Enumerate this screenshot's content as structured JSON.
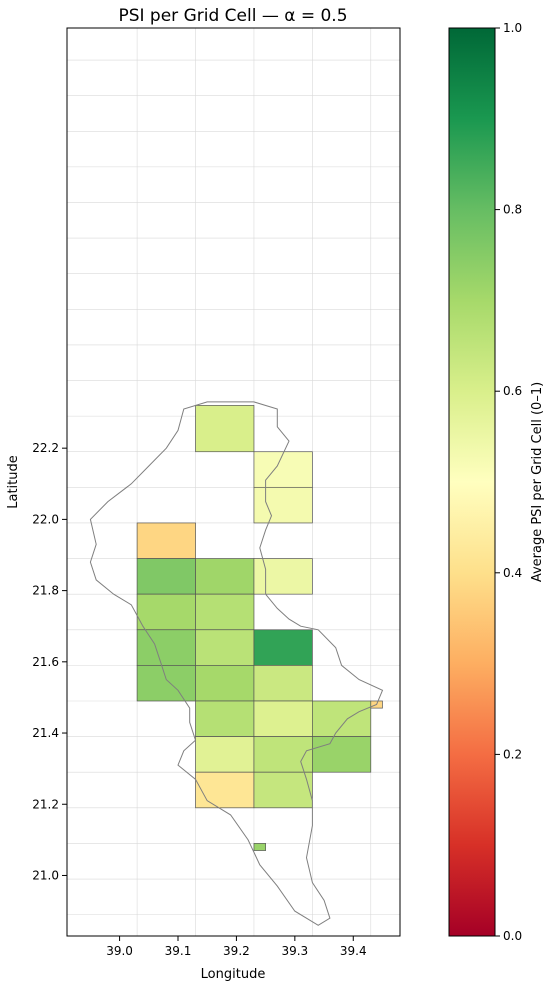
{
  "chart_data": {
    "type": "heatmap",
    "title": "PSI per Grid Cell — α = 0.5",
    "xlabel": "Longitude",
    "ylabel": "Latitude",
    "xlim": [
      38.91,
      39.48
    ],
    "ylim": [
      20.83,
      23.38
    ],
    "xticks": [
      {
        "v": 39.0,
        "label": "39.0"
      },
      {
        "v": 39.1,
        "label": "39.1"
      },
      {
        "v": 39.2,
        "label": "39.2"
      },
      {
        "v": 39.3,
        "label": "39.3"
      },
      {
        "v": 39.4,
        "label": "39.4"
      }
    ],
    "yticks": [
      {
        "v": 21.0,
        "label": "21.0"
      },
      {
        "v": 21.2,
        "label": "21.2"
      },
      {
        "v": 21.4,
        "label": "21.4"
      },
      {
        "v": 21.6,
        "label": "21.6"
      },
      {
        "v": 21.8,
        "label": "21.8"
      },
      {
        "v": 22.0,
        "label": "22.0"
      },
      {
        "v": 22.2,
        "label": "22.2"
      }
    ],
    "grid": true,
    "colorbar": {
      "label": "Average PSI per Grid Cell (0–1)",
      "range": [
        0.0,
        1.0
      ],
      "colormap": "RdYlGn",
      "ticks": [
        {
          "v": 0.0,
          "label": "0.0"
        },
        {
          "v": 0.2,
          "label": "0.2"
        },
        {
          "v": 0.4,
          "label": "0.4"
        },
        {
          "v": 0.6,
          "label": "0.6"
        },
        {
          "v": 0.8,
          "label": "0.8"
        },
        {
          "v": 1.0,
          "label": "1.0"
        }
      ]
    },
    "cells": [
      {
        "lon": [
          39.13,
          39.23
        ],
        "lat": [
          22.19,
          22.32
        ],
        "value": 0.6
      },
      {
        "lon": [
          39.23,
          39.33
        ],
        "lat": [
          22.09,
          22.19
        ],
        "value": 0.52
      },
      {
        "lon": [
          39.23,
          39.33
        ],
        "lat": [
          21.99,
          22.09
        ],
        "value": 0.53
      },
      {
        "lon": [
          39.03,
          39.13
        ],
        "lat": [
          21.89,
          21.99
        ],
        "value": 0.38
      },
      {
        "lon": [
          39.03,
          39.13
        ],
        "lat": [
          21.79,
          21.89
        ],
        "value": 0.76
      },
      {
        "lon": [
          39.13,
          39.23
        ],
        "lat": [
          21.79,
          21.89
        ],
        "value": 0.71
      },
      {
        "lon": [
          39.23,
          39.33
        ],
        "lat": [
          21.79,
          21.89
        ],
        "value": 0.55
      },
      {
        "lon": [
          39.13,
          39.23
        ],
        "lat": [
          21.69,
          21.79
        ],
        "value": 0.67
      },
      {
        "lon": [
          39.13,
          39.23
        ],
        "lat": [
          21.59,
          21.69
        ],
        "value": 0.66
      },
      {
        "lon": [
          39.03,
          39.13
        ],
        "lat": [
          21.69,
          21.79
        ],
        "value": 0.7
      },
      {
        "lon": [
          39.03,
          39.13
        ],
        "lat": [
          21.59,
          21.69
        ],
        "value": 0.74
      },
      {
        "lon": [
          39.23,
          39.33
        ],
        "lat": [
          21.59,
          21.69
        ],
        "value": 0.87
      },
      {
        "lon": [
          39.13,
          39.23
        ],
        "lat": [
          21.49,
          21.59
        ],
        "value": 0.7
      },
      {
        "lon": [
          39.03,
          39.13
        ],
        "lat": [
          21.49,
          21.59
        ],
        "value": 0.74
      },
      {
        "lon": [
          39.23,
          39.33
        ],
        "lat": [
          21.49,
          21.59
        ],
        "value": 0.63
      },
      {
        "lon": [
          39.13,
          39.23
        ],
        "lat": [
          21.39,
          21.49
        ],
        "value": 0.67
      },
      {
        "lon": [
          39.23,
          39.33
        ],
        "lat": [
          21.39,
          21.49
        ],
        "value": 0.59
      },
      {
        "lon": [
          39.33,
          39.43
        ],
        "lat": [
          21.39,
          21.49
        ],
        "value": 0.65
      },
      {
        "lon": [
          39.43,
          39.45
        ],
        "lat": [
          21.47,
          21.49
        ],
        "value": 0.38
      },
      {
        "lon": [
          39.13,
          39.23
        ],
        "lat": [
          21.29,
          21.39
        ],
        "value": 0.58
      },
      {
        "lon": [
          39.23,
          39.33
        ],
        "lat": [
          21.29,
          21.39
        ],
        "value": 0.65
      },
      {
        "lon": [
          39.33,
          39.43
        ],
        "lat": [
          21.29,
          21.39
        ],
        "value": 0.72
      },
      {
        "lon": [
          39.13,
          39.23
        ],
        "lat": [
          21.19,
          21.29
        ],
        "value": 0.42
      },
      {
        "lon": [
          39.23,
          39.33
        ],
        "lat": [
          21.19,
          21.29
        ],
        "value": 0.64
      },
      {
        "lon": [
          39.23,
          39.25
        ],
        "lat": [
          21.07,
          21.09
        ],
        "value": 0.72
      }
    ],
    "coastline": [
      [
        39.23,
        22.33
      ],
      [
        39.27,
        22.31
      ],
      [
        39.27,
        22.26
      ],
      [
        39.29,
        22.22
      ],
      [
        39.27,
        22.15
      ],
      [
        39.25,
        22.11
      ],
      [
        39.25,
        22.05
      ],
      [
        39.26,
        22.01
      ],
      [
        39.25,
        21.97
      ],
      [
        39.24,
        21.92
      ],
      [
        39.25,
        21.86
      ],
      [
        39.25,
        21.79
      ],
      [
        39.27,
        21.75
      ],
      [
        39.29,
        21.72
      ],
      [
        39.31,
        21.7
      ],
      [
        39.34,
        21.69
      ],
      [
        39.37,
        21.64
      ],
      [
        39.38,
        21.59
      ],
      [
        39.41,
        21.55
      ],
      [
        39.45,
        21.52
      ],
      [
        39.44,
        21.48
      ],
      [
        39.41,
        21.46
      ],
      [
        39.39,
        21.44
      ],
      [
        39.37,
        21.4
      ],
      [
        39.36,
        21.37
      ],
      [
        39.32,
        21.35
      ],
      [
        39.31,
        21.32
      ],
      [
        39.32,
        21.27
      ],
      [
        39.33,
        21.21
      ],
      [
        39.33,
        21.14
      ],
      [
        39.32,
        21.05
      ],
      [
        39.33,
        20.98
      ],
      [
        39.35,
        20.93
      ],
      [
        39.36,
        20.88
      ],
      [
        39.34,
        20.86
      ],
      [
        39.3,
        20.9
      ],
      [
        39.27,
        20.97
      ],
      [
        39.24,
        21.03
      ],
      [
        39.22,
        21.1
      ],
      [
        39.19,
        21.17
      ],
      [
        39.15,
        21.21
      ],
      [
        39.13,
        21.27
      ],
      [
        39.1,
        21.31
      ],
      [
        39.11,
        21.35
      ],
      [
        39.13,
        21.38
      ],
      [
        39.12,
        21.43
      ],
      [
        39.12,
        21.47
      ],
      [
        39.1,
        21.52
      ],
      [
        39.08,
        21.55
      ],
      [
        39.07,
        21.6
      ],
      [
        39.06,
        21.65
      ],
      [
        39.04,
        21.7
      ],
      [
        39.02,
        21.76
      ],
      [
        38.99,
        21.79
      ],
      [
        38.96,
        21.83
      ],
      [
        38.95,
        21.88
      ],
      [
        38.96,
        21.93
      ],
      [
        38.95,
        22.0
      ],
      [
        38.98,
        22.05
      ],
      [
        39.02,
        22.1
      ],
      [
        39.05,
        22.15
      ],
      [
        39.08,
        22.2
      ],
      [
        39.1,
        22.25
      ],
      [
        39.11,
        22.31
      ],
      [
        39.15,
        22.33
      ],
      [
        39.23,
        22.33
      ]
    ]
  }
}
